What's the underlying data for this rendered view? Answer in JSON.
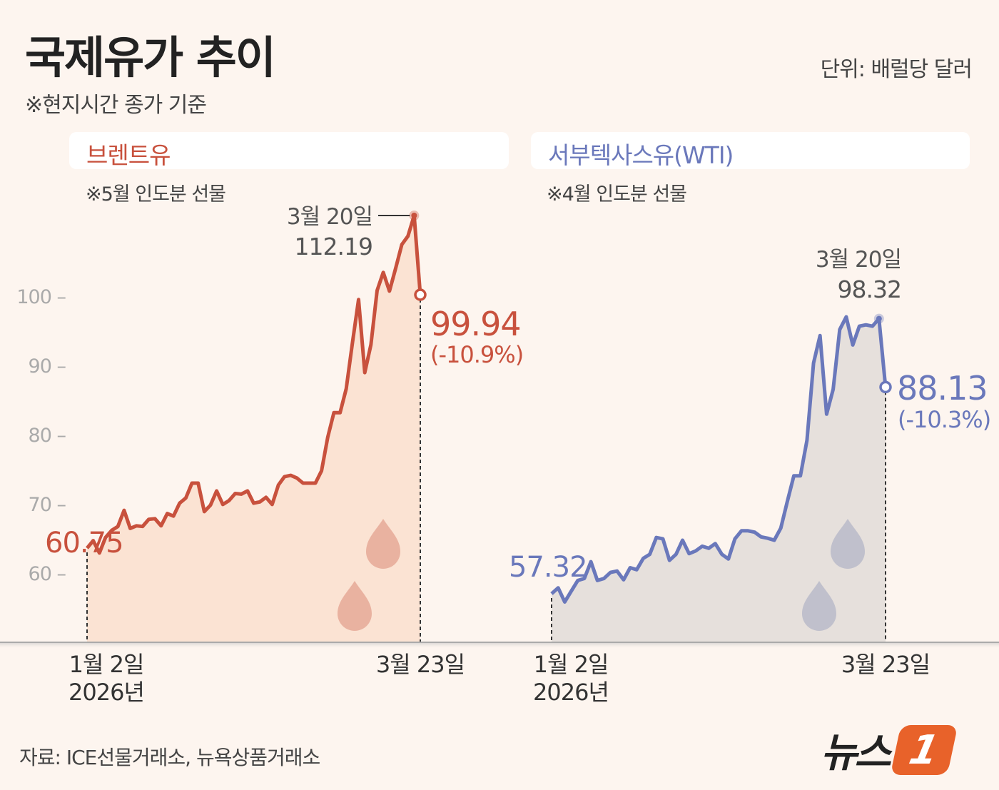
{
  "header": {
    "title": "국제유가 추이",
    "subtitle": "※현지시간 종가 기준",
    "unit": "단위: 배럴당 달러"
  },
  "colors": {
    "background": "#fdf5ef",
    "brent_line": "#c8513d",
    "brent_fill": "#fbe3d3",
    "wti_line": "#6a78bb",
    "wti_fill": "#e6e0dc"
  },
  "chart_data": [
    {
      "type": "area",
      "title": "브렌트유",
      "note": "※5월 인도분 선물",
      "y_ticks": [
        60,
        70,
        80,
        90,
        100
      ],
      "y_tick_labels": [
        "60 –",
        "70 –",
        "80 –",
        "90 –",
        "100 –"
      ],
      "x_labels": {
        "start": [
          "1월 2일",
          "2026년"
        ],
        "end": "3월 23일"
      },
      "values": [
        60.75,
        61.9,
        60.0,
        62.4,
        63.5,
        64.1,
        66.6,
        63.8,
        64.2,
        64.1,
        65.2,
        65.3,
        64.2,
        66.1,
        65.7,
        67.7,
        68.5,
        70.8,
        70.8,
        66.4,
        67.4,
        69.6,
        67.5,
        68.1,
        69.2,
        69.1,
        69.6,
        67.7,
        67.9,
        68.6,
        67.5,
        70.5,
        71.8,
        72.0,
        71.6,
        70.8,
        70.8,
        70.8,
        72.7,
        77.9,
        81.7,
        81.7,
        85.4,
        92.5,
        99.2,
        87.9,
        92.2,
        100.6,
        103.4,
        100.5,
        104.0,
        107.7,
        109.0,
        112.19,
        99.94
      ],
      "annotations": {
        "start_value": "60.75",
        "peak_date": "3월 20일",
        "peak_value": "112.19",
        "end_value": "99.94",
        "end_change": "(-10.9%)"
      }
    },
    {
      "type": "area",
      "title": "서부텍사스유(WTI)",
      "note": "※4월 인도분 선물",
      "x_labels": {
        "start": [
          "1월 2일",
          "2026년"
        ],
        "end": "3월 23일"
      },
      "values": [
        57.32,
        58.2,
        56.1,
        57.7,
        59.3,
        59.6,
        62.1,
        59.3,
        59.6,
        60.5,
        60.7,
        59.4,
        61.2,
        60.9,
        62.6,
        63.2,
        65.7,
        65.5,
        62.3,
        63.2,
        65.3,
        63.3,
        63.7,
        64.4,
        64.1,
        64.8,
        63.2,
        62.5,
        65.5,
        66.7,
        66.7,
        66.5,
        65.8,
        65.6,
        65.3,
        67.1,
        71.1,
        74.9,
        74.9,
        80.2,
        91.7,
        95.8,
        84.1,
        87.8,
        96.7,
        98.6,
        94.4,
        97.2,
        97.4,
        97.2,
        98.32,
        88.13
      ],
      "annotations": {
        "start_value": "57.32",
        "peak_date": "3월 20일",
        "peak_value": "98.32",
        "end_value": "88.13",
        "end_change": "(-10.3%)"
      }
    }
  ],
  "footer": {
    "source": "자료: ICE선물거래소, 뉴욕상품거래소",
    "logo_text": "뉴스",
    "logo_badge": "1"
  }
}
